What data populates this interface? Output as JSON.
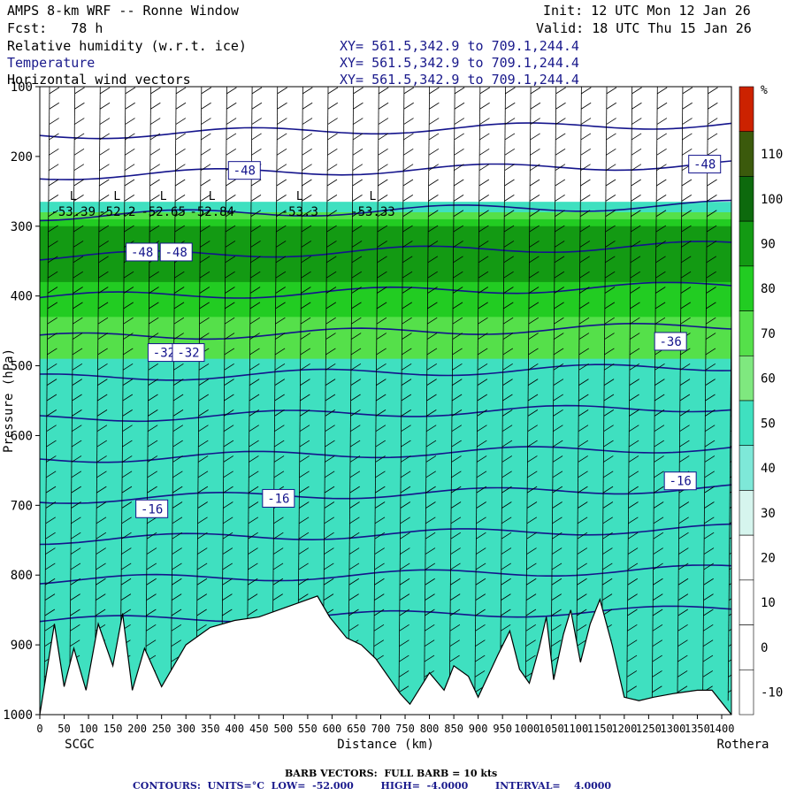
{
  "header": {
    "model": "AMPS 8-km WRF -- Ronne Window",
    "fcst": "Fcst:   78 h",
    "init": "Init: 12 UTC Mon 12 Jan 26",
    "valid": "Valid: 18 UTC Thu 15 Jan 26",
    "fields": [
      {
        "label": "Relative humidity (w.r.t. ice)",
        "xy": "XY= 561.5,342.9 to 709.1,244.4",
        "color": "#000000"
      },
      {
        "label": "Temperature",
        "xy": "XY= 561.5,342.9 to 709.1,244.4",
        "color": "#1a1a8c"
      },
      {
        "label": "Horizontal wind vectors",
        "xy": "XY= 561.5,342.9 to 709.1,244.4",
        "color": "#000000"
      }
    ]
  },
  "footer": {
    "barb_note": "BARB VECTORS:  FULL BARB = 10 kts",
    "contours_note": "CONTOURS:  UNITS=°C  LOW=  -52.000        HIGH=  -4.0000        INTERVAL=    4.0000"
  },
  "chart_data": {
    "type": "heatmap",
    "title": "AMPS 8-km WRF -- Ronne Window",
    "xlabel": "Distance (km)",
    "ylabel": "Pressure (hPa)",
    "x_range": [
      0,
      1420
    ],
    "y_range": [
      1000,
      100
    ],
    "x_ticks": [
      0,
      50,
      100,
      150,
      200,
      250,
      300,
      350,
      400,
      450,
      500,
      550,
      600,
      650,
      700,
      750,
      800,
      850,
      900,
      950,
      1000,
      1050,
      1100,
      1150,
      1200,
      1250,
      1300,
      1350,
      1400
    ],
    "x_tick_labels": [
      "0",
      "50",
      "100",
      "150",
      "200",
      "250",
      "300",
      "350",
      "400",
      "450",
      "500",
      "550",
      "600",
      "650",
      "700",
      "750",
      "800",
      "850",
      "900",
      "950",
      "1000",
      "1050",
      "1100",
      "1150",
      "1200",
      "1250",
      "1300",
      "1350",
      "1400"
    ],
    "y_ticks": [
      100,
      200,
      300,
      400,
      500,
      600,
      700,
      800,
      900,
      1000
    ],
    "endpoints": {
      "left": "SCGC",
      "right": "Rothera"
    },
    "colorbar": {
      "unit": "%",
      "labels": [
        -10,
        0,
        10,
        20,
        30,
        40,
        50,
        60,
        70,
        80,
        90,
        100,
        110
      ],
      "bins": [
        {
          "from": -10,
          "to": 0,
          "color": "#ffffff"
        },
        {
          "from": 0,
          "to": 10,
          "color": "#ffffff"
        },
        {
          "from": 10,
          "to": 20,
          "color": "#ffffff"
        },
        {
          "from": 20,
          "to": 30,
          "color": "#ffffff"
        },
        {
          "from": 30,
          "to": 40,
          "color": "#d6f5ee"
        },
        {
          "from": 40,
          "to": 50,
          "color": "#7ee8d8"
        },
        {
          "from": 50,
          "to": 60,
          "color": "#3fe0c0"
        },
        {
          "from": 60,
          "to": 70,
          "color": "#7fe87f"
        },
        {
          "from": 70,
          "to": 80,
          "color": "#55e04a"
        },
        {
          "from": 80,
          "to": 90,
          "color": "#22cc22"
        },
        {
          "from": 90,
          "to": 100,
          "color": "#139a13"
        },
        {
          "from": 100,
          "to": 110,
          "color": "#0d6a0d"
        },
        {
          "from": 110,
          "to": 120,
          "color": "#3b5a0c"
        },
        {
          "from": 120,
          "to": 130,
          "color": "#cc2200"
        }
      ]
    },
    "rh_layers": [
      {
        "p_top": 265,
        "p_bot": 1000,
        "rh": 55
      },
      {
        "p_top": 280,
        "p_bot": 490,
        "rh": 75
      },
      {
        "p_top": 290,
        "p_bot": 430,
        "rh": 85
      },
      {
        "p_top": 300,
        "p_bot": 380,
        "rh": 95
      }
    ],
    "temperature_contours": {
      "units": "°C",
      "low": -52,
      "high": -4,
      "interval": 4,
      "labels": [
        {
          "x": 420,
          "p": 220,
          "text": "-48"
        },
        {
          "x": 1365,
          "p": 211,
          "text": "-48"
        },
        {
          "x": 210,
          "p": 337,
          "text": "-48"
        },
        {
          "x": 280,
          "p": 337,
          "text": "-48"
        },
        {
          "x": 255,
          "p": 481,
          "text": "-32"
        },
        {
          "x": 305,
          "p": 481,
          "text": "-32"
        },
        {
          "x": 1295,
          "p": 465,
          "text": "-36"
        },
        {
          "x": 230,
          "p": 705,
          "text": "-16"
        },
        {
          "x": 490,
          "p": 690,
          "text": "-16"
        },
        {
          "x": 1315,
          "p": 665,
          "text": "-16"
        }
      ]
    },
    "tropopause_lows": [
      {
        "x": 5,
        "p": 285,
        "text": "-53.39"
      },
      {
        "x": 95,
        "p": 285,
        "text": "-52.2"
      },
      {
        "x": 190,
        "p": 285,
        "text": "-52.65"
      },
      {
        "x": 290,
        "p": 285,
        "text": "-52.84"
      },
      {
        "x": 470,
        "p": 285,
        "text": "-53.3"
      },
      {
        "x": 620,
        "p": 285,
        "text": "-53.33"
      }
    ],
    "terrain": [
      [
        0,
        1000
      ],
      [
        30,
        870
      ],
      [
        50,
        960
      ],
      [
        70,
        905
      ],
      [
        95,
        965
      ],
      [
        120,
        870
      ],
      [
        150,
        930
      ],
      [
        170,
        855
      ],
      [
        190,
        965
      ],
      [
        215,
        905
      ],
      [
        250,
        960
      ],
      [
        300,
        900
      ],
      [
        350,
        875
      ],
      [
        400,
        865
      ],
      [
        450,
        860
      ],
      [
        490,
        850
      ],
      [
        530,
        840
      ],
      [
        570,
        830
      ],
      [
        595,
        860
      ],
      [
        630,
        890
      ],
      [
        660,
        900
      ],
      [
        690,
        920
      ],
      [
        740,
        970
      ],
      [
        760,
        985
      ],
      [
        800,
        940
      ],
      [
        830,
        965
      ],
      [
        850,
        930
      ],
      [
        880,
        945
      ],
      [
        900,
        975
      ],
      [
        940,
        915
      ],
      [
        965,
        880
      ],
      [
        985,
        935
      ],
      [
        1005,
        955
      ],
      [
        1025,
        905
      ],
      [
        1040,
        860
      ],
      [
        1055,
        950
      ],
      [
        1075,
        885
      ],
      [
        1090,
        850
      ],
      [
        1110,
        925
      ],
      [
        1130,
        870
      ],
      [
        1150,
        835
      ],
      [
        1175,
        900
      ],
      [
        1200,
        975
      ],
      [
        1230,
        980
      ],
      [
        1260,
        975
      ],
      [
        1300,
        970
      ],
      [
        1350,
        965
      ],
      [
        1380,
        965
      ],
      [
        1420,
        1000
      ]
    ]
  }
}
